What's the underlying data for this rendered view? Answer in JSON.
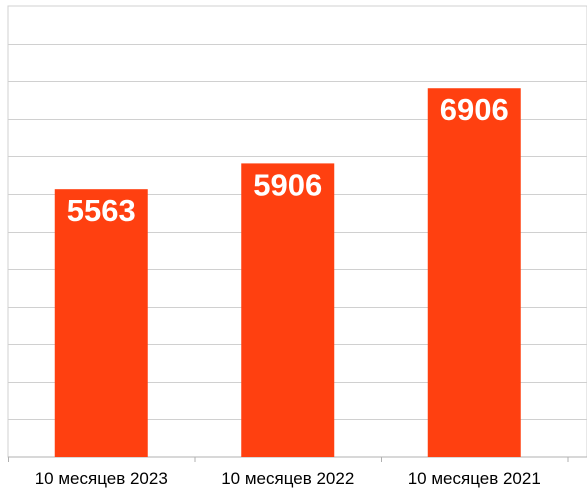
{
  "chart_data": {
    "type": "bar",
    "categories": [
      "10 месяцев 2023",
      "10 месяцев 2022",
      "10 месяцев 2021"
    ],
    "values": [
      5563,
      5906,
      6906
    ],
    "title": "",
    "xlabel": "",
    "ylabel": "",
    "ylim": [
      2000,
      8000
    ],
    "grid": true,
    "legend": "none",
    "colors": {
      "bar": "#ff4010",
      "bar_label": "#ffffff",
      "grid": "#d0d0d0",
      "background": "#ffffff"
    }
  }
}
